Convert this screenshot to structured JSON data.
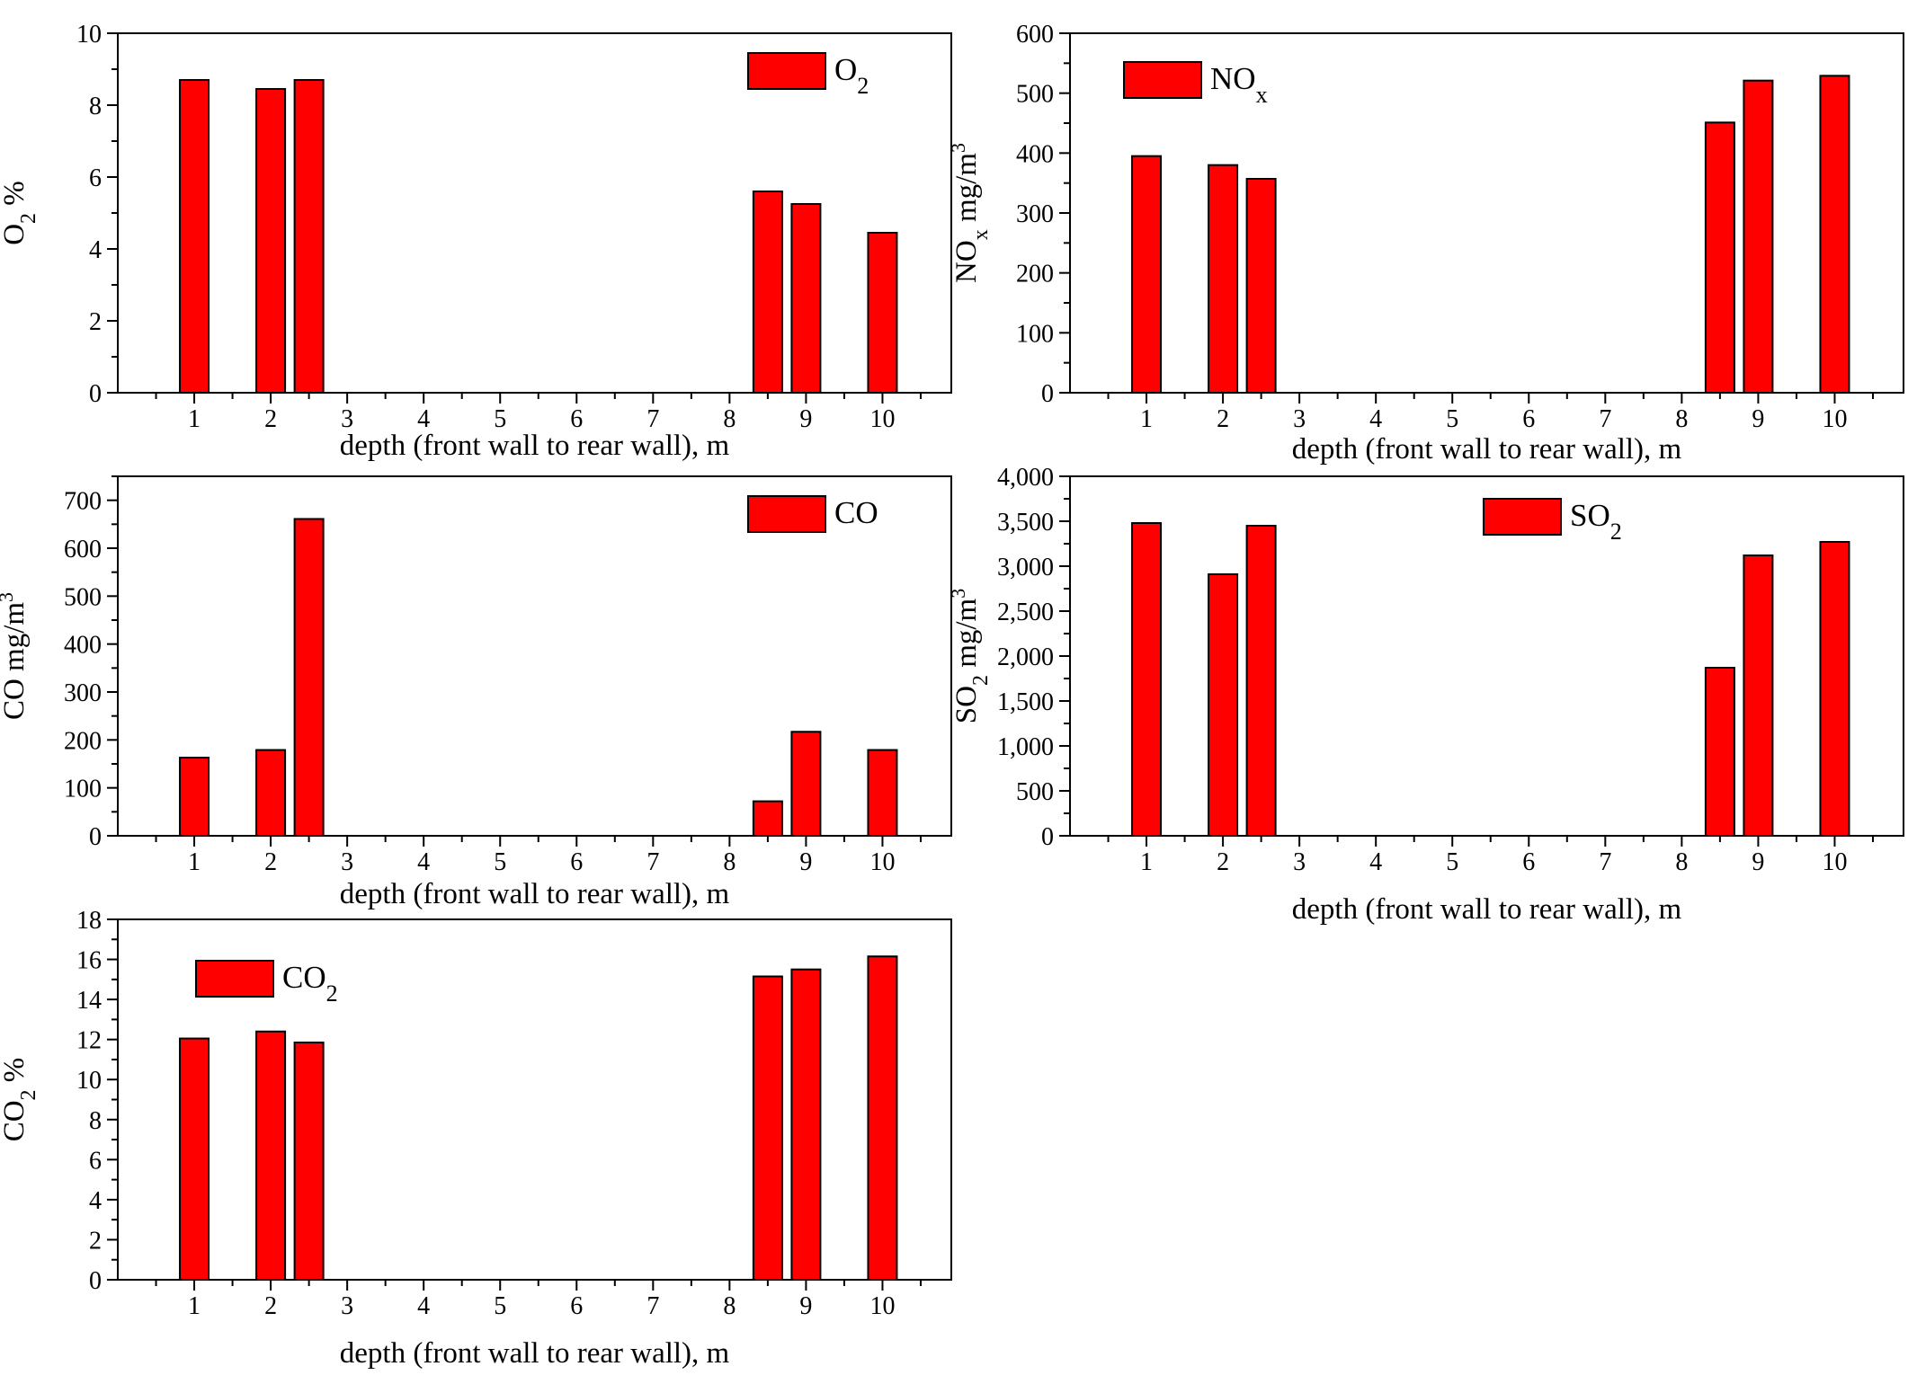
{
  "bar_color": "#ff0000",
  "chart_data": [
    {
      "id": "o2",
      "type": "bar",
      "title": "",
      "legend": {
        "label": "O",
        "sub": "2"
      },
      "ylabel": {
        "main": "O",
        "sub": "2",
        "rest": "  %"
      },
      "xlabel": "depth (front wall to rear wall), m",
      "xlim": [
        0,
        10.9
      ],
      "ylim": [
        0,
        10
      ],
      "xticks": [
        1,
        2,
        3,
        4,
        5,
        6,
        7,
        8,
        9,
        10
      ],
      "yticks": [
        0,
        2,
        4,
        6,
        8,
        10
      ],
      "ytick_labels": [
        "0",
        "2",
        "4",
        "6",
        "8",
        "10"
      ],
      "x": [
        1,
        2,
        2.5,
        8.5,
        9,
        10
      ],
      "values": [
        8.7,
        8.45,
        8.7,
        5.6,
        5.25,
        4.45
      ]
    },
    {
      "id": "nox",
      "type": "bar",
      "title": "",
      "legend": {
        "label": "NO",
        "sub": "x"
      },
      "ylabel": {
        "main": "NO",
        "sub": "x",
        "rest": "  mg/m",
        "sup": "3"
      },
      "xlabel": "depth (front wall to rear wall), m",
      "xlim": [
        0,
        10.9
      ],
      "ylim": [
        0,
        600
      ],
      "xticks": [
        1,
        2,
        3,
        4,
        5,
        6,
        7,
        8,
        9,
        10
      ],
      "yticks": [
        0,
        100,
        200,
        300,
        400,
        500,
        600
      ],
      "ytick_labels": [
        "0",
        "100",
        "200",
        "300",
        "400",
        "500",
        "600"
      ],
      "x": [
        1,
        2,
        2.5,
        8.5,
        9,
        10
      ],
      "values": [
        395,
        380,
        357,
        451,
        521,
        529
      ]
    },
    {
      "id": "co",
      "type": "bar",
      "title": "",
      "legend": {
        "label": "CO",
        "sub": ""
      },
      "ylabel": {
        "main": "CO",
        "sub": "",
        "rest": "  mg/m",
        "sup": "3"
      },
      "xlabel": "depth (front wall to rear wall), m",
      "xlim": [
        0,
        10.9
      ],
      "ylim": [
        0,
        750
      ],
      "xticks": [
        1,
        2,
        3,
        4,
        5,
        6,
        7,
        8,
        9,
        10
      ],
      "yticks": [
        0,
        100,
        200,
        300,
        400,
        500,
        600,
        700
      ],
      "ytick_labels": [
        "0",
        "100",
        "200",
        "300",
        "400",
        "500",
        "600",
        "700"
      ],
      "x": [
        1,
        2,
        2.5,
        8.5,
        9,
        10
      ],
      "values": [
        163,
        179,
        661,
        72,
        217,
        179
      ]
    },
    {
      "id": "so2",
      "type": "bar",
      "title": "",
      "legend": {
        "label": "SO",
        "sub": "2"
      },
      "ylabel": {
        "main": "SO",
        "sub": "2",
        "rest": "  mg/m",
        "sup": "3"
      },
      "xlabel": "depth (front wall to rear wall), m",
      "xlim": [
        0,
        10.9
      ],
      "ylim": [
        0,
        4000
      ],
      "xticks": [
        1,
        2,
        3,
        4,
        5,
        6,
        7,
        8,
        9,
        10
      ],
      "yticks": [
        0,
        500,
        1000,
        1500,
        2000,
        2500,
        3000,
        3500,
        4000
      ],
      "ytick_labels": [
        "0",
        "500",
        "1,000",
        "1,500",
        "2,000",
        "2,500",
        "3,000",
        "3,500",
        "4,000"
      ],
      "x": [
        1,
        2,
        2.5,
        8.5,
        9,
        10
      ],
      "values": [
        3480,
        2910,
        3450,
        1870,
        3120,
        3270
      ]
    },
    {
      "id": "co2",
      "type": "bar",
      "title": "",
      "legend": {
        "label": "CO",
        "sub": "2"
      },
      "ylabel": {
        "main": "CO",
        "sub": "2",
        "rest": "  %"
      },
      "xlabel": "depth (front wall to rear wall), m",
      "xlim": [
        0,
        10.9
      ],
      "ylim": [
        0,
        18
      ],
      "xticks": [
        1,
        2,
        3,
        4,
        5,
        6,
        7,
        8,
        9,
        10
      ],
      "yticks": [
        0,
        2,
        4,
        6,
        8,
        10,
        12,
        14,
        16,
        18
      ],
      "ytick_labels": [
        "0",
        "2",
        "4",
        "6",
        "8",
        "10",
        "12",
        "14",
        "16",
        "18"
      ],
      "x": [
        1,
        2,
        2.5,
        8.5,
        9,
        10
      ],
      "values": [
        12.05,
        12.4,
        11.85,
        15.15,
        15.5,
        16.15
      ]
    }
  ]
}
